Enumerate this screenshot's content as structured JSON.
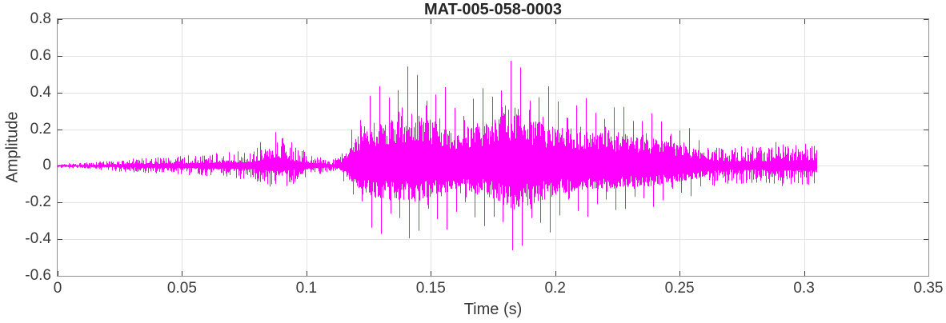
{
  "figure": {
    "background": "#ffffff"
  },
  "chart_data": {
    "type": "line",
    "title": "MAT-005-058-0003",
    "xlabel": "Time (s)",
    "ylabel": "Amplitude",
    "xlim": [
      0,
      0.35
    ],
    "ylim": [
      -0.6,
      0.8
    ],
    "xticks": [
      0,
      0.05,
      0.1,
      0.15,
      0.2,
      0.25,
      0.3,
      0.35
    ],
    "xtick_labels": [
      "0",
      "0.05",
      "0.1",
      "0.15",
      "0.2",
      "0.25",
      "0.3",
      "0.35"
    ],
    "yticks": [
      -0.6,
      -0.4,
      -0.2,
      0,
      0.2,
      0.4,
      0.6,
      0.8
    ],
    "ytick_labels": [
      "-0.6",
      "-0.4",
      "-0.2",
      "0",
      "0.2",
      "0.4",
      "0.6",
      "0.8"
    ],
    "grid": true,
    "legend": null,
    "colors": {
      "line": "#ff00ff",
      "grid": "#e3e3e3",
      "box": "#8f8f8f",
      "tick": "#3f3f3f",
      "text": "#2b2b2b"
    },
    "signal": {
      "description": "speech waveform envelope keypoints [time_s, upper_amp, lower_amp]",
      "duration": 0.305,
      "pitch_hz": 265,
      "voiced_range": [
        0.114,
        0.263
      ],
      "envelope": [
        [
          0.0,
          0.012,
          -0.012
        ],
        [
          0.012,
          0.018,
          -0.018
        ],
        [
          0.025,
          0.035,
          -0.032
        ],
        [
          0.04,
          0.048,
          -0.042
        ],
        [
          0.055,
          0.06,
          -0.052
        ],
        [
          0.068,
          0.075,
          -0.065
        ],
        [
          0.078,
          0.09,
          -0.08
        ],
        [
          0.083,
          0.15,
          -0.11
        ],
        [
          0.088,
          0.19,
          -0.13
        ],
        [
          0.093,
          0.14,
          -0.11
        ],
        [
          0.098,
          0.09,
          -0.075
        ],
        [
          0.104,
          0.055,
          -0.05
        ],
        [
          0.11,
          0.035,
          -0.035
        ],
        [
          0.114,
          0.06,
          -0.06
        ],
        [
          0.118,
          0.25,
          -0.2
        ],
        [
          0.123,
          0.4,
          -0.33
        ],
        [
          0.128,
          0.46,
          -0.44
        ],
        [
          0.134,
          0.52,
          -0.4
        ],
        [
          0.139,
          0.57,
          -0.42
        ],
        [
          0.144,
          0.58,
          -0.45
        ],
        [
          0.149,
          0.52,
          -0.4
        ],
        [
          0.154,
          0.45,
          -0.38
        ],
        [
          0.159,
          0.39,
          -0.34
        ],
        [
          0.165,
          0.41,
          -0.33
        ],
        [
          0.171,
          0.45,
          -0.36
        ],
        [
          0.176,
          0.52,
          -0.42
        ],
        [
          0.181,
          0.62,
          -0.5
        ],
        [
          0.185,
          0.63,
          -0.55
        ],
        [
          0.189,
          0.52,
          -0.48
        ],
        [
          0.194,
          0.47,
          -0.43
        ],
        [
          0.199,
          0.43,
          -0.37
        ],
        [
          0.206,
          0.4,
          -0.32
        ],
        [
          0.213,
          0.38,
          -0.3
        ],
        [
          0.221,
          0.36,
          -0.29
        ],
        [
          0.229,
          0.35,
          -0.27
        ],
        [
          0.237,
          0.31,
          -0.25
        ],
        [
          0.245,
          0.27,
          -0.23
        ],
        [
          0.251,
          0.23,
          -0.19
        ],
        [
          0.257,
          0.18,
          -0.16
        ],
        [
          0.263,
          0.13,
          -0.12
        ],
        [
          0.27,
          0.105,
          -0.095
        ],
        [
          0.277,
          0.115,
          -0.1
        ],
        [
          0.284,
          0.1,
          -0.09
        ],
        [
          0.29,
          0.15,
          -0.12
        ],
        [
          0.296,
          0.11,
          -0.1
        ],
        [
          0.301,
          0.14,
          -0.11
        ],
        [
          0.305,
          0.12,
          -0.1
        ]
      ]
    }
  }
}
